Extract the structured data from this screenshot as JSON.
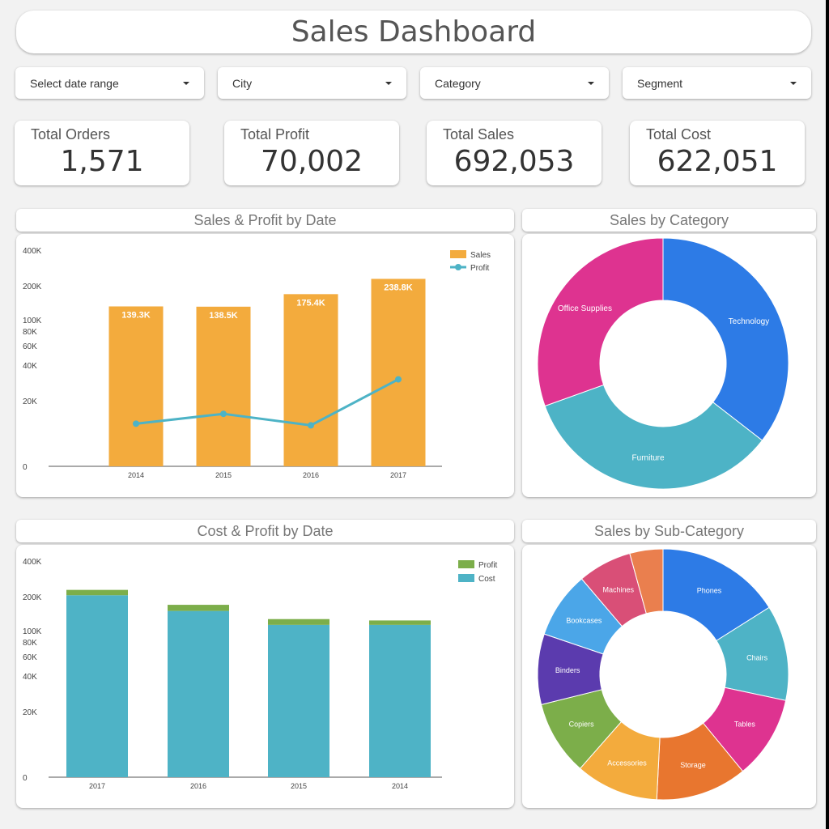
{
  "title": "Sales Dashboard",
  "filters": [
    {
      "label": "Select date range"
    },
    {
      "label": "City"
    },
    {
      "label": "Category"
    },
    {
      "label": "Segment"
    }
  ],
  "kpis": [
    {
      "label": "Total Orders",
      "value": "1,571"
    },
    {
      "label": "Total Profit",
      "value": "70,002"
    },
    {
      "label": "Total Sales",
      "value": "692,053"
    },
    {
      "label": "Total Cost",
      "value": "622,051"
    }
  ],
  "colors": {
    "sales": "#f3ab3d",
    "profit_line": "#4db3c6",
    "profit_bar": "#7cae4a",
    "cost": "#4eb3c6"
  },
  "chart_data": [
    {
      "id": "sales_profit",
      "type": "bar",
      "title": "Sales & Profit by Date",
      "categories": [
        "2014",
        "2015",
        "2016",
        "2017"
      ],
      "y_ticks": [
        "400K",
        "200K",
        "100K",
        "80K",
        "60K",
        "40K",
        "20K",
        "0"
      ],
      "scale": "log",
      "series": [
        {
          "name": "Sales",
          "kind": "bar",
          "values": [
            139300,
            138500,
            175400,
            238800
          ],
          "labels": [
            "139.3K",
            "138.5K",
            "175.4K",
            "238.8K"
          ],
          "color": "#f3ab3d"
        },
        {
          "name": "Profit",
          "kind": "line",
          "values": [
            13000,
            16000,
            12500,
            32000
          ],
          "color": "#4db3c6"
        }
      ],
      "legend": "top-right"
    },
    {
      "id": "sales_category",
      "type": "pie",
      "title": "Sales by Category",
      "slices": [
        {
          "label": "Technology",
          "value": 35.5,
          "color": "#2d7be6"
        },
        {
          "label": "Furniture",
          "value": 34.0,
          "color": "#4db3c6"
        },
        {
          "label": "Office Supplies",
          "value": 30.5,
          "color": "#de3390"
        }
      ]
    },
    {
      "id": "cost_profit",
      "type": "bar",
      "title": "Cost & Profit by Date",
      "categories": [
        "2017",
        "2016",
        "2015",
        "2014"
      ],
      "y_ticks": [
        "400K",
        "200K",
        "100K",
        "80K",
        "60K",
        "40K",
        "20K",
        "0"
      ],
      "scale": "log",
      "stacked": true,
      "series": [
        {
          "name": "Cost",
          "values": [
            208000,
            158000,
            117000,
            117000
          ],
          "color": "#4eb3c6"
        },
        {
          "name": "Profit",
          "values": [
            30000,
            18000,
            17000,
            13000
          ],
          "color": "#7cae4a"
        }
      ],
      "legend": "top-right"
    },
    {
      "id": "sales_subcategory",
      "type": "pie",
      "title": "Sales by Sub-Category",
      "slices": [
        {
          "label": "Phones",
          "value": 15.0,
          "color": "#2d7be6"
        },
        {
          "label": "Chairs",
          "value": 11.5,
          "color": "#4eb3c6"
        },
        {
          "label": "Tables",
          "value": 10.0,
          "color": "#de3390"
        },
        {
          "label": "Storage",
          "value": 11.0,
          "color": "#e8762f"
        },
        {
          "label": "Accessories",
          "value": 10.0,
          "color": "#f3ab3d"
        },
        {
          "label": "Copiers",
          "value": 9.0,
          "color": "#7cae4a"
        },
        {
          "label": "Binders",
          "value": 8.5,
          "color": "#5b3bae"
        },
        {
          "label": "Bookcases",
          "value": 8.0,
          "color": "#4ba6e8"
        },
        {
          "label": "Machines",
          "value": 6.5,
          "color": "#d94f77"
        },
        {
          "label": "",
          "value": 4.0,
          "color": "#ea7f4e"
        }
      ]
    }
  ]
}
